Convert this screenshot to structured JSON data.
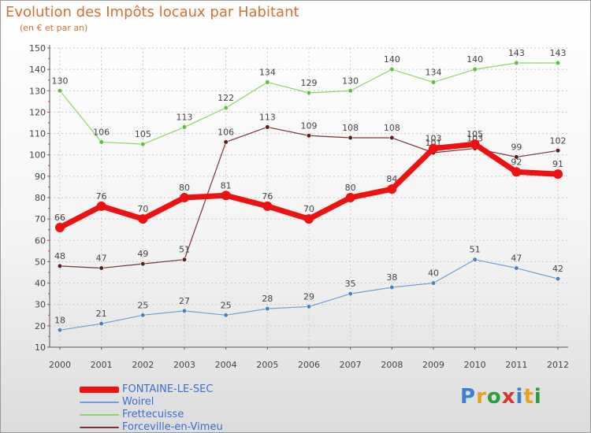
{
  "title": "Evolution des Impôts locaux par Habitant",
  "subtitle": "(en € et par an)",
  "logo": {
    "text": "Proxiti",
    "colors": [
      "#3a7fd0",
      "#e8a020",
      "#2f9c3f",
      "#d63a2a",
      "#3a7fd0",
      "#e8a020",
      "#2f9c3f"
    ]
  },
  "chart_data": {
    "type": "line",
    "title": "Evolution des Impôts locaux par Habitant",
    "ylabel": "(en € et par an)",
    "xlabel": "",
    "ylim": [
      10,
      150
    ],
    "yticks": [
      10,
      20,
      30,
      40,
      50,
      60,
      70,
      80,
      90,
      100,
      110,
      120,
      130,
      140,
      150
    ],
    "grid": true,
    "categories": [
      "2000",
      "2001",
      "2002",
      "2003",
      "2004",
      "2005",
      "2006",
      "2007",
      "2008",
      "2009",
      "2010",
      "2011",
      "2012"
    ],
    "series": [
      {
        "name": "Frettecuisse",
        "color": "#8fd46a",
        "marker": "#5fbf3a",
        "width": 1.2,
        "dot": 2.8,
        "values": [
          130,
          106,
          105,
          113,
          122,
          134,
          129,
          130,
          140,
          134,
          140,
          143,
          143
        ]
      },
      {
        "name": "Forceville-en-Vimeu",
        "color": "#7a3434",
        "marker": "#5a1f1f",
        "width": 1.2,
        "dot": 2.8,
        "values": [
          48,
          47,
          49,
          51,
          106,
          113,
          109,
          108,
          108,
          101,
          103,
          99,
          102
        ]
      },
      {
        "name": "Woirel",
        "color": "#6f9fd4",
        "marker": "#4a7fc2",
        "width": 1.2,
        "dot": 2.8,
        "values": [
          18,
          21,
          25,
          27,
          25,
          28,
          29,
          35,
          38,
          40,
          51,
          47,
          42
        ]
      },
      {
        "name": "FONTAINE-LE-SEC",
        "color": "#ee1111",
        "marker": "#ee1111",
        "width": 7,
        "dot": 6,
        "values": [
          66,
          76,
          70,
          80,
          81,
          76,
          70,
          80,
          84,
          103,
          105,
          92,
          91
        ]
      }
    ],
    "legend_order": [
      "FONTAINE-LE-SEC",
      "Woirel",
      "Frettecuisse",
      "Forceville-en-Vimeu"
    ],
    "legend_position": "bottom-left"
  }
}
